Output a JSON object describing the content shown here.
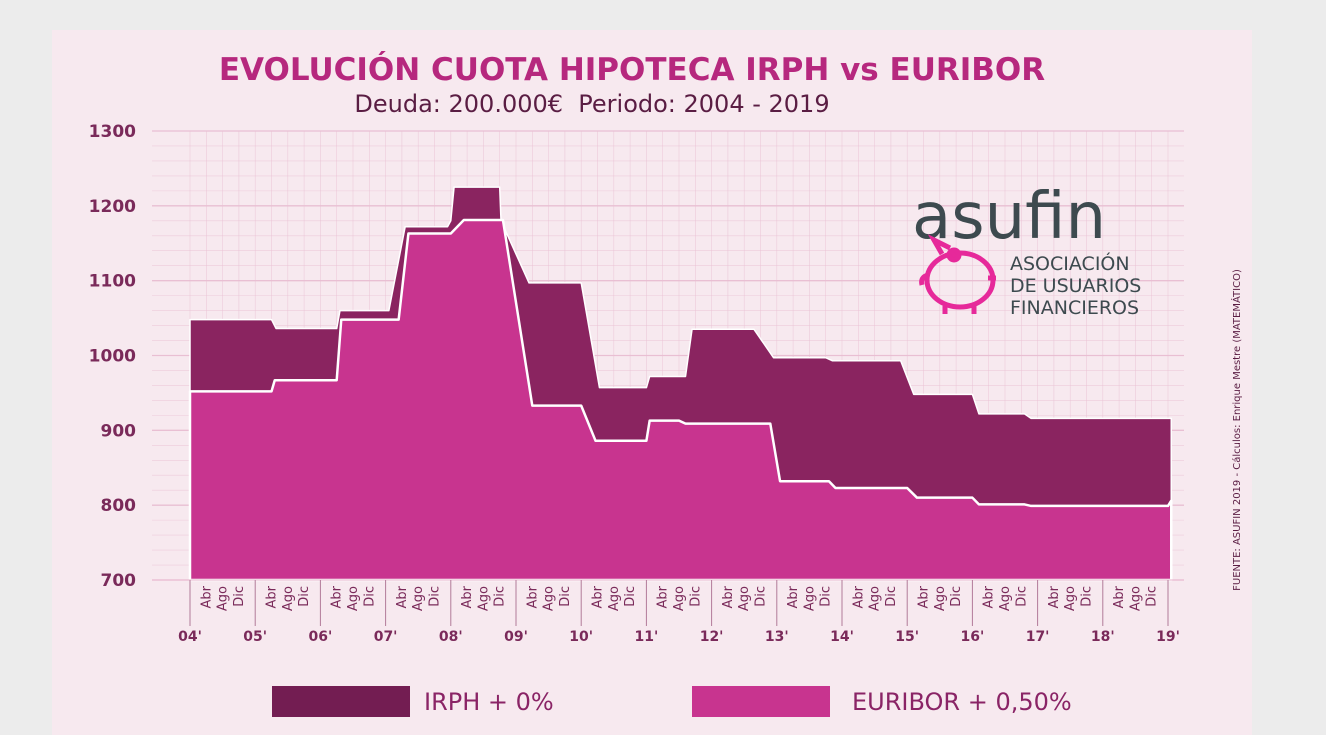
{
  "colors": {
    "irph": "#8a2460",
    "euribor": "#c8348f",
    "title": "#b6287e",
    "grid": "#e9bfd3",
    "logo_pink": "#e6299a"
  },
  "chart_data": {
    "type": "area",
    "title": "EVOLUCIÓN CUOTA HIPOTECA IRPH vs EURIBOR",
    "subtitle": "Deuda: 200.000€  Periodo: 2004 - 2019",
    "ylim": [
      700,
      1300
    ],
    "yticks": [
      "1300",
      "1200",
      "1100",
      "1000",
      "900",
      "800",
      "700"
    ],
    "month_labels": [
      "Abr",
      "Ago",
      "Dic"
    ],
    "year_labels": [
      "04'",
      "05'",
      "06'",
      "07'",
      "08'",
      "09'",
      "10'",
      "11'",
      "12'",
      "13'",
      "14'",
      "15'",
      "16'",
      "17'",
      "18'",
      "19'"
    ],
    "x_note": "x in years since Jan 2004",
    "series": [
      {
        "name": "IRPH + 0%",
        "points": [
          [
            0,
            1048
          ],
          [
            1.25,
            1048
          ],
          [
            1.32,
            1036
          ],
          [
            2.25,
            1036
          ],
          [
            2.3,
            1060
          ],
          [
            3.05,
            1060
          ],
          [
            3.3,
            1172
          ],
          [
            3.95,
            1172
          ],
          [
            4.0,
            1180
          ],
          [
            4.05,
            1225
          ],
          [
            4.75,
            1225
          ],
          [
            4.77,
            1180
          ],
          [
            5.2,
            1097
          ],
          [
            6.0,
            1097
          ],
          [
            6.28,
            957
          ],
          [
            7.0,
            957
          ],
          [
            7.05,
            972
          ],
          [
            7.6,
            972
          ],
          [
            7.7,
            1035
          ],
          [
            8.65,
            1035
          ],
          [
            8.95,
            997
          ],
          [
            9.75,
            997
          ],
          [
            9.85,
            993
          ],
          [
            10.9,
            993
          ],
          [
            11.1,
            948
          ],
          [
            12.0,
            948
          ],
          [
            12.1,
            922
          ],
          [
            12.8,
            922
          ],
          [
            12.9,
            916
          ],
          [
            15.05,
            916
          ]
        ]
      },
      {
        "name": "EURIBOR + 0,50%",
        "points": [
          [
            0,
            952
          ],
          [
            1.25,
            952
          ],
          [
            1.3,
            967
          ],
          [
            2.25,
            967
          ],
          [
            2.32,
            1048
          ],
          [
            3.2,
            1048
          ],
          [
            3.35,
            1163
          ],
          [
            4.0,
            1163
          ],
          [
            4.2,
            1181
          ],
          [
            4.8,
            1181
          ],
          [
            5.25,
            933
          ],
          [
            6.0,
            933
          ],
          [
            6.22,
            886
          ],
          [
            7.0,
            886
          ],
          [
            7.05,
            913
          ],
          [
            7.5,
            913
          ],
          [
            7.6,
            909
          ],
          [
            8.9,
            909
          ],
          [
            9.05,
            832
          ],
          [
            9.8,
            832
          ],
          [
            9.9,
            823
          ],
          [
            11.0,
            823
          ],
          [
            11.15,
            810
          ],
          [
            12.0,
            810
          ],
          [
            12.1,
            801
          ],
          [
            12.8,
            801
          ],
          [
            12.9,
            799
          ],
          [
            15.0,
            799
          ],
          [
            15.05,
            806
          ]
        ]
      }
    ]
  },
  "legend": {
    "irph_label": "IRPH + 0%",
    "euribor_label": "EURIBOR + 0,50%"
  },
  "logo": {
    "word": "asufin",
    "line1": "ASOCIACIÓN",
    "line2": "DE USUARIOS",
    "line3": "FINANCIEROS"
  },
  "source_note": "FUENTE: ASUFIN 2019 - Cálculos: Enrique Mestre (MATEMÁTICO)"
}
